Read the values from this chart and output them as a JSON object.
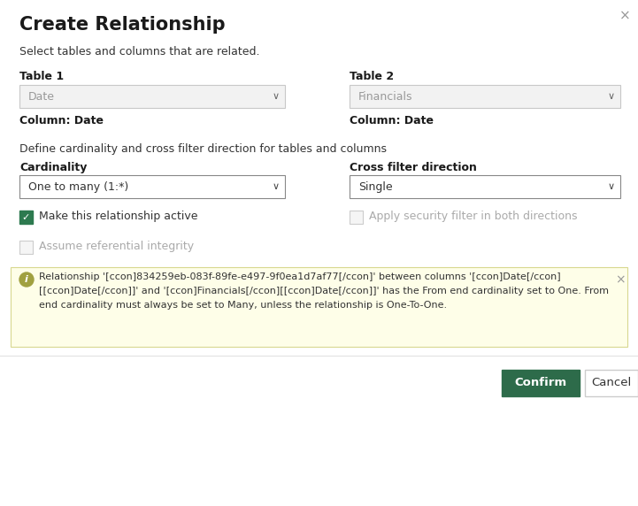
{
  "title": "Create Relationship",
  "subtitle": "Select tables and columns that are related.",
  "table1_label": "Table 1",
  "table1_value": "Date",
  "table1_column": "Column: Date",
  "table2_label": "Table 2",
  "table2_value": "Financials",
  "table2_column": "Column: Date",
  "section2_label": "Define cardinality and cross filter direction for tables and columns",
  "cardinality_label": "Cardinality",
  "cardinality_value": "One to many (1:*)",
  "crossfilter_label": "Cross filter direction",
  "crossfilter_value": "Single",
  "checkbox1_label": "Make this relationship active",
  "checkbox1_checked": true,
  "checkbox2_label": "Apply security filter in both directions",
  "checkbox2_checked": false,
  "checkbox3_label": "Assume referential integrity",
  "checkbox3_checked": false,
  "warning_line1": "Relationship '[ccon]834259eb-083f-89fe-e497-9f0ea1d7af77[/ccon]' between columns '[ccon]Date[/ccon]",
  "warning_line2": "[[ccon]Date[/ccon]]' and '[ccon]Financials[/ccon][[ccon]Date[/ccon]]' has the From end cardinality set to One. From",
  "warning_line3": "end cardinality must always be set to Many, unless the relationship is One-To-One.",
  "confirm_label": "Confirm",
  "cancel_label": "Cancel",
  "bg_color": "#ffffff",
  "dropdown_bg": "#f2f2f2",
  "dropdown_border": "#c8c8c8",
  "cardinality_dropdown_bg": "#ffffff",
  "cardinality_dropdown_border": "#888888",
  "warning_bg": "#fefee8",
  "warning_border": "#d8d890",
  "confirm_bg": "#2d6b4a",
  "confirm_text": "#ffffff",
  "checkbox_green": "#2d7a4f",
  "title_color": "#1a1a1a",
  "text_color": "#333333",
  "bold_color": "#1a1a1a",
  "muted_color": "#aaaaaa",
  "close_color": "#999999",
  "info_icon_color": "#a0a040",
  "separator_color": "#e0e0e0"
}
